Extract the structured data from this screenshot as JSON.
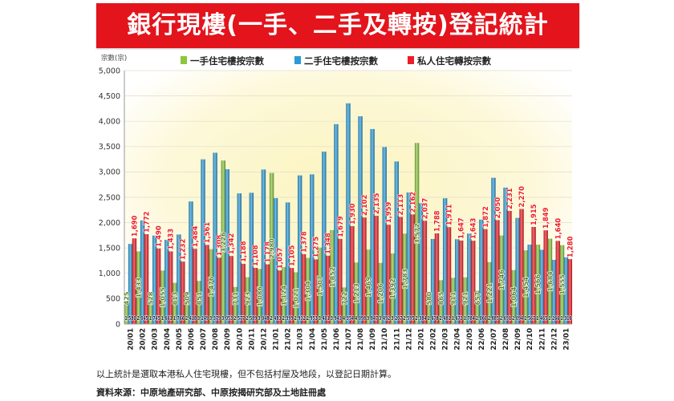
{
  "banner": {
    "title": "銀行現樓(一手、二手及轉按)登記統計",
    "color": "#e3141c"
  },
  "chart_data": {
    "type": "bar",
    "ylabel": "宗數(宗)",
    "ylim": [
      0,
      5000
    ],
    "yticks": [
      0,
      500,
      1000,
      1500,
      2000,
      2500,
      3000,
      3500,
      4000,
      4500,
      5000
    ],
    "grid": true,
    "legend_position": "top",
    "categories": [
      "20/01",
      "20/02",
      "20/03",
      "20/04",
      "20/05",
      "20/06",
      "20/07",
      "20/08",
      "20/09",
      "20/10",
      "20/11",
      "20/12",
      "21/01",
      "21/02",
      "21/03",
      "21/04",
      "21/05",
      "21/06",
      "21/07",
      "21/08",
      "21/09",
      "21/10",
      "21/11",
      "21/12",
      "22/01",
      "22/02",
      "22/03",
      "22/04",
      "22/05",
      "22/06",
      "22/07",
      "22/08",
      "22/09",
      "22/10",
      "22/11",
      "22/12",
      "23/01"
    ],
    "series": [
      {
        "name": "一手住宅樓按宗數",
        "color": "#8cc63e",
        "values": [
          425,
          1433,
          528,
          1055,
          813,
          509,
          851,
          1476,
          3226,
          731,
          923,
          1086,
          2980,
          1124,
          1021,
          1304,
          1507,
          1852,
          722,
          1213,
          1469,
          1206,
          1392,
          1783,
          3572,
          580,
          865,
          911,
          921,
          657,
          1221,
          1746,
          1064,
          1454,
          1566,
          1684,
          1555
        ]
      },
      {
        "name": "二手住宅樓按宗數",
        "color": "#2b9ad8",
        "values": [
          1580,
          2045,
          1745,
          1661,
          1766,
          2418,
          3249,
          3379,
          3053,
          2577,
          2589,
          3048,
          2483,
          2399,
          2932,
          2953,
          3401,
          3943,
          4354,
          4098,
          3847,
          3492,
          3207,
          2595,
          2384,
          1678,
          2481,
          1673,
          1784,
          2060,
          2885,
          2691,
          2094,
          1567,
          1465,
          1266,
          1316
        ]
      },
      {
        "name": "私人住宅轉按宗數",
        "color": "#ee1c25",
        "values": [
          1690,
          1772,
          1490,
          1433,
          1232,
          1484,
          1561,
          1308,
          1342,
          1188,
          1108,
          1178,
          1057,
          1105,
          1378,
          1275,
          1348,
          1679,
          1930,
          2102,
          2135,
          1959,
          2113,
          2162,
          2037,
          1788,
          1911,
          1647,
          1643,
          1872,
          2050,
          2231,
          2270,
          1915,
          1849,
          1640,
          1280
        ]
      }
    ]
  },
  "footnotes": {
    "note": "以上統計是選取本港私人住宅現樓，但不包括村屋及地段，以登記日期計算。",
    "source": "資料來源：中原地產研究部、中原按揭研究部及土地註冊處"
  }
}
